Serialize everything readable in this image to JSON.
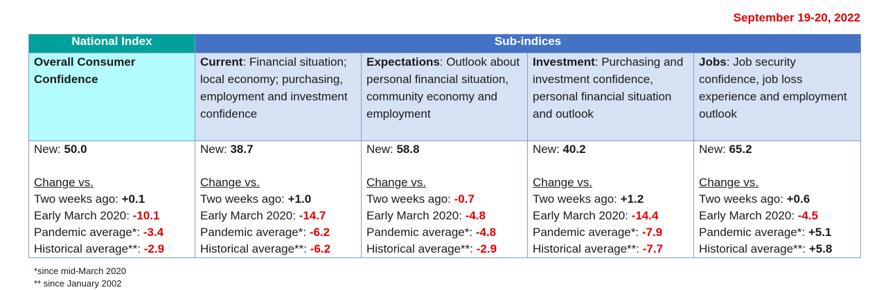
{
  "date": "September 19-20, 2022",
  "headers": {
    "national": "National Index",
    "sub": "Sub-indices"
  },
  "national": {
    "description": "Overall Consumer Confidence"
  },
  "subindices": [
    {
      "name": "Current",
      "description": ":  Financial situation; local economy; purchasing, employment and investment confidence"
    },
    {
      "name": "Expectations",
      "description": ":  Outlook about personal financial situation, community economy and employment"
    },
    {
      "name": "Investment",
      "description": ": Purchasing and investment confidence, personal financial situation and outlook"
    },
    {
      "name": "Jobs",
      "description": ": Job security confidence, job loss experience and employment outlook"
    }
  ],
  "labels": {
    "new": "New: ",
    "change": "Change vs.",
    "two_weeks": "Two weeks ago: ",
    "early_march": "Early March 2020: ",
    "pandemic": "Pandemic average*: ",
    "historical": "Historical average**: "
  },
  "values": [
    {
      "new": "50.0",
      "two_weeks": "+0.1",
      "early_march": "-10.1",
      "pandemic": "-3.4",
      "historical": "-2.9"
    },
    {
      "new": "38.7",
      "two_weeks": "+1.0",
      "early_march": "-14.7",
      "pandemic": "-6.2",
      "historical": "-6.2"
    },
    {
      "new": "58.8",
      "two_weeks": "-0.7",
      "early_march": "-4.8",
      "pandemic": "-4.8",
      "historical": "-2.9"
    },
    {
      "new": "40.2",
      "two_weeks": "+1.2",
      "early_march": "-14.4",
      "pandemic": "-7.9",
      "historical": "-7.7"
    },
    {
      "new": "65.2",
      "two_weeks": "+0.6",
      "early_march": "-4.5",
      "pandemic": "+5.1",
      "historical": "+5.8"
    }
  ],
  "footnotes": [
    "*since mid-March 2020",
    "** since January 2002"
  ],
  "colors": {
    "date": "#e00000",
    "national_header": "#00a19a",
    "sub_header": "#4472c4",
    "national_desc": "#b3fdff",
    "sub_desc": "#d6e1f3",
    "negative": "#e00000"
  }
}
